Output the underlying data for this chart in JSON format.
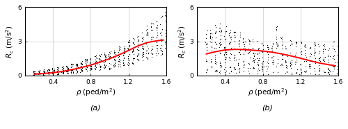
{
  "subplot_a": {
    "rho_columns": [
      0.2,
      0.25,
      0.3,
      0.35,
      0.4,
      0.45,
      0.5,
      0.55,
      0.6,
      0.65,
      0.7,
      0.75,
      0.8,
      0.85,
      0.9,
      0.95,
      1.0,
      1.05,
      1.1,
      1.15,
      1.2,
      1.25,
      1.3,
      1.35,
      1.4,
      1.45,
      1.5,
      1.55,
      1.6
    ],
    "dot_maxes": [
      0.45,
      0.5,
      0.55,
      0.6,
      0.7,
      0.75,
      0.85,
      0.95,
      1.05,
      1.15,
      1.3,
      1.45,
      1.6,
      1.75,
      1.9,
      2.05,
      2.2,
      2.4,
      2.6,
      2.8,
      3.1,
      3.3,
      3.6,
      4.0,
      4.4,
      4.7,
      5.0,
      5.3,
      5.6
    ],
    "dot_mins": [
      0.05,
      0.05,
      0.05,
      0.07,
      0.08,
      0.1,
      0.12,
      0.15,
      0.18,
      0.2,
      0.25,
      0.3,
      0.35,
      0.4,
      0.45,
      0.5,
      0.55,
      0.65,
      0.7,
      0.8,
      0.9,
      1.0,
      1.1,
      1.2,
      1.3,
      1.5,
      1.7,
      1.8,
      2.0
    ],
    "dot_counts": [
      12,
      12,
      15,
      15,
      18,
      18,
      20,
      20,
      22,
      22,
      22,
      22,
      22,
      22,
      22,
      22,
      22,
      22,
      22,
      22,
      22,
      22,
      22,
      22,
      22,
      22,
      22,
      22,
      22
    ],
    "trend_rho": [
      0.2,
      0.3,
      0.4,
      0.5,
      0.6,
      0.7,
      0.8,
      0.9,
      1.0,
      1.1,
      1.2,
      1.3,
      1.4,
      1.5,
      1.57
    ],
    "trend_vals": [
      0.12,
      0.18,
      0.25,
      0.36,
      0.52,
      0.7,
      0.92,
      1.18,
      1.48,
      1.82,
      2.2,
      2.6,
      2.9,
      3.05,
      3.12
    ]
  },
  "subplot_b": {
    "rho_columns": [
      0.2,
      0.25,
      0.3,
      0.35,
      0.4,
      0.45,
      0.5,
      0.55,
      0.6,
      0.65,
      0.7,
      0.75,
      0.8,
      0.85,
      0.9,
      0.95,
      1.0,
      1.05,
      1.1,
      1.15,
      1.2,
      1.25,
      1.3,
      1.35,
      1.4,
      1.45,
      1.5,
      1.55,
      1.6
    ],
    "dot_maxes": [
      4.0,
      4.3,
      4.5,
      4.6,
      4.5,
      4.3,
      4.0,
      3.8,
      3.5,
      3.3,
      3.2,
      3.1,
      3.0,
      3.0,
      3.0,
      4.5,
      3.5,
      3.3,
      3.2,
      3.0,
      3.0,
      3.0,
      3.2,
      3.0,
      2.9,
      2.8,
      2.9,
      3.0,
      2.8
    ],
    "dot_mins": [
      0.3,
      0.2,
      0.15,
      0.15,
      0.2,
      0.2,
      0.2,
      0.2,
      0.15,
      0.15,
      0.15,
      0.1,
      0.1,
      0.1,
      0.1,
      0.1,
      0.1,
      0.1,
      0.1,
      0.1,
      0.1,
      0.1,
      0.1,
      0.1,
      0.1,
      0.1,
      0.1,
      0.1,
      0.1
    ],
    "dot_counts": [
      15,
      20,
      25,
      28,
      28,
      28,
      25,
      22,
      20,
      20,
      20,
      20,
      20,
      18,
      18,
      18,
      18,
      18,
      18,
      18,
      18,
      18,
      18,
      18,
      18,
      18,
      18,
      18,
      18
    ],
    "trend_rho": [
      0.2,
      0.3,
      0.4,
      0.5,
      0.6,
      0.7,
      0.8,
      0.9,
      1.0,
      1.1,
      1.2,
      1.3,
      1.4,
      1.5,
      1.57
    ],
    "trend_vals": [
      1.9,
      2.1,
      2.25,
      2.3,
      2.28,
      2.22,
      2.15,
      2.05,
      1.9,
      1.72,
      1.52,
      1.3,
      1.1,
      0.95,
      0.85
    ]
  },
  "xlim": [
    0.1,
    1.6
  ],
  "ylim": [
    0,
    6
  ],
  "yticks": [
    0,
    3,
    6
  ],
  "xticks": [
    0.4,
    0.8,
    1.2,
    1.6
  ],
  "dot_color": "black",
  "trend_color": "red",
  "dot_size": 0.8,
  "grid_color": "#c8c8c8",
  "bg_color": "white",
  "tick_labelsize": 6.5,
  "label_fontsize": 7.5
}
